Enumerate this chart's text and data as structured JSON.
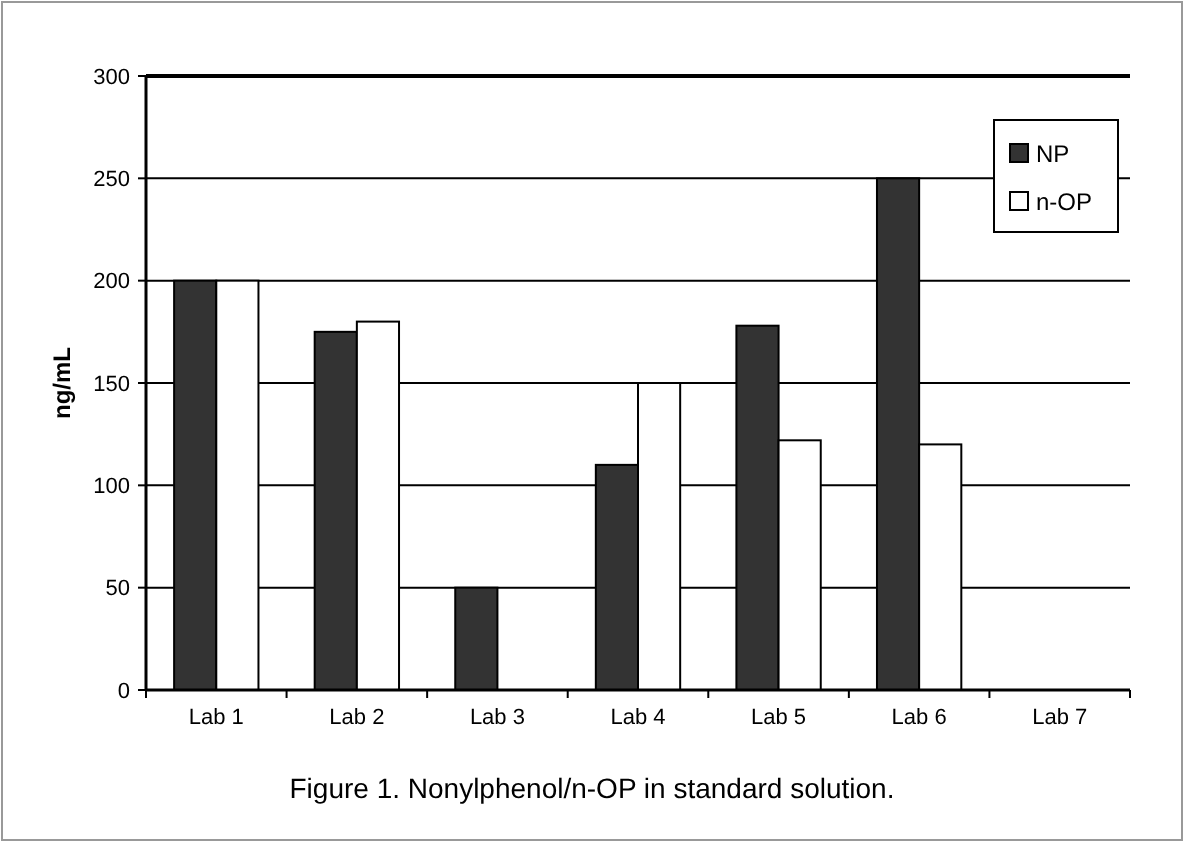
{
  "chart_data": {
    "type": "bar",
    "title": "Figure 1. Nonylphenol/n-OP in standard solution.",
    "ylabel": "ng/mL",
    "categories": [
      "Lab 1",
      "Lab 2",
      "Lab 3",
      "Lab 4",
      "Lab 5",
      "Lab 6",
      "Lab 7"
    ],
    "series": [
      {
        "name": "NP",
        "color": "#333333",
        "values": [
          200,
          175,
          50,
          110,
          178,
          250,
          null
        ]
      },
      {
        "name": "n-OP",
        "color": "#ffffff",
        "values": [
          200,
          180,
          null,
          150,
          122,
          120,
          null
        ]
      }
    ],
    "ylim": [
      0,
      300
    ],
    "yticks": [
      0,
      50,
      100,
      150,
      200,
      250,
      300
    ],
    "grid": "y",
    "legend": "top right"
  }
}
